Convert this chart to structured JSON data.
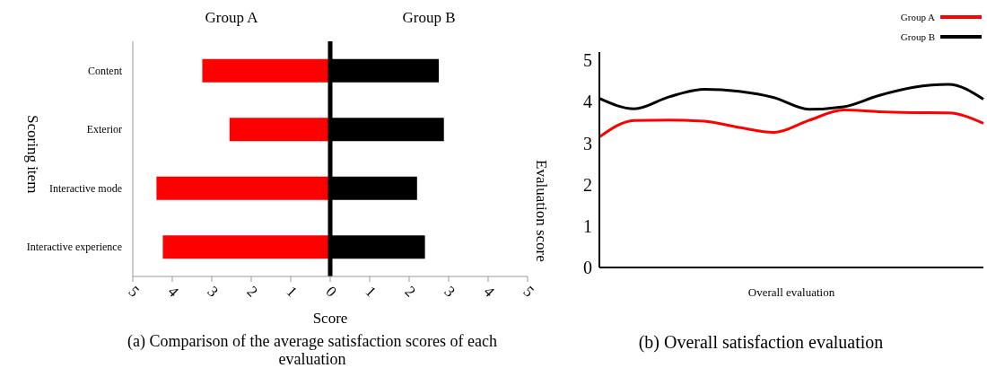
{
  "chart_data": [
    {
      "type": "bar",
      "orientation": "horizontal",
      "stacked": true,
      "title": "(a) Comparison of the average satisfaction scores of each evaluation",
      "xlabel": "Score",
      "ylabel": "Scoring item",
      "categories": [
        "Content",
        "Exterior",
        "Interactive mode",
        "Interactive experience"
      ],
      "series": [
        {
          "name": "Group A",
          "color": "#ff0000",
          "values": [
            -3.24,
            -2.55,
            -4.4,
            -4.24
          ]
        },
        {
          "name": "Group B",
          "color": "#000000",
          "values": [
            2.75,
            2.88,
            2.2,
            2.4
          ]
        }
      ],
      "xlim": [
        -5,
        5
      ],
      "xticks": [
        {
          "value": -5,
          "label": "5"
        },
        {
          "value": -4,
          "label": "4"
        },
        {
          "value": -3,
          "label": "3"
        },
        {
          "value": -2,
          "label": "2"
        },
        {
          "value": -1,
          "label": "1"
        },
        0,
        1,
        2,
        3,
        4,
        5
      ],
      "ref_lines": [
        {
          "axis": "x",
          "value": 0,
          "color": "#000000"
        }
      ],
      "legend": "top",
      "grid": false
    },
    {
      "type": "line",
      "title": "(b) Overall satisfaction evaluation",
      "xlabel": "Overall evaluation",
      "ylabel": "Evaluation score",
      "categories": [
        null,
        null,
        null,
        null,
        null,
        null,
        null,
        null,
        null,
        null,
        null,
        null
      ],
      "series": [
        {
          "name": "Group A",
          "color": "#ff0000",
          "values": [
            3.15,
            3.55,
            3.56,
            3.53,
            3.38,
            3.26,
            3.55,
            3.8,
            3.76,
            3.74,
            3.73,
            3.48
          ]
        },
        {
          "name": "Group B",
          "color": "#000000",
          "values": [
            4.08,
            3.83,
            4.12,
            4.3,
            4.25,
            4.1,
            3.82,
            3.88,
            4.15,
            4.35,
            4.42,
            4.06
          ]
        }
      ],
      "ylim": [
        0,
        5.2
      ],
      "yticks": [
        0,
        1,
        2,
        3,
        4,
        5
      ],
      "legend": "top right",
      "grid": false,
      "marker": "none",
      "line_style": "solid"
    }
  ]
}
